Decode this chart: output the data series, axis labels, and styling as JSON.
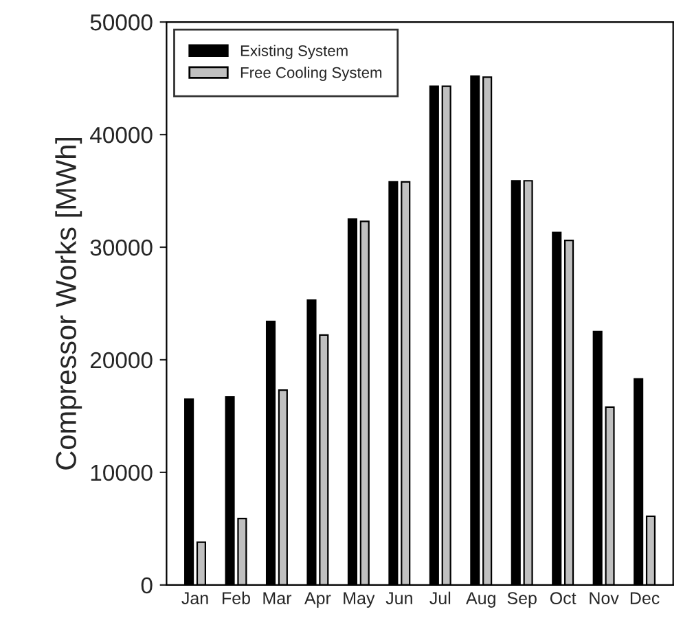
{
  "chart_data": {
    "type": "bar",
    "ylabel": "Compressor Works [MWh]",
    "categories": [
      "Jan",
      "Feb",
      "Mar",
      "Apr",
      "May",
      "Jun",
      "Jul",
      "Aug",
      "Sep",
      "Oct",
      "Nov",
      "Dec"
    ],
    "series": [
      {
        "name": "Existing System",
        "color": "#000000",
        "values": [
          16500,
          16700,
          23400,
          25300,
          32500,
          35800,
          44300,
          45200,
          35900,
          31300,
          22500,
          18300
        ]
      },
      {
        "name": "Free Cooling System",
        "color": "#c0c0c0",
        "values": [
          3800,
          5900,
          17300,
          22200,
          32300,
          35800,
          44300,
          45100,
          35900,
          30600,
          15800,
          6100
        ]
      }
    ],
    "ylim": [
      0,
      50000
    ],
    "yticks": [
      0,
      10000,
      20000,
      30000,
      40000,
      50000
    ],
    "grid": false,
    "legend": "top left"
  }
}
